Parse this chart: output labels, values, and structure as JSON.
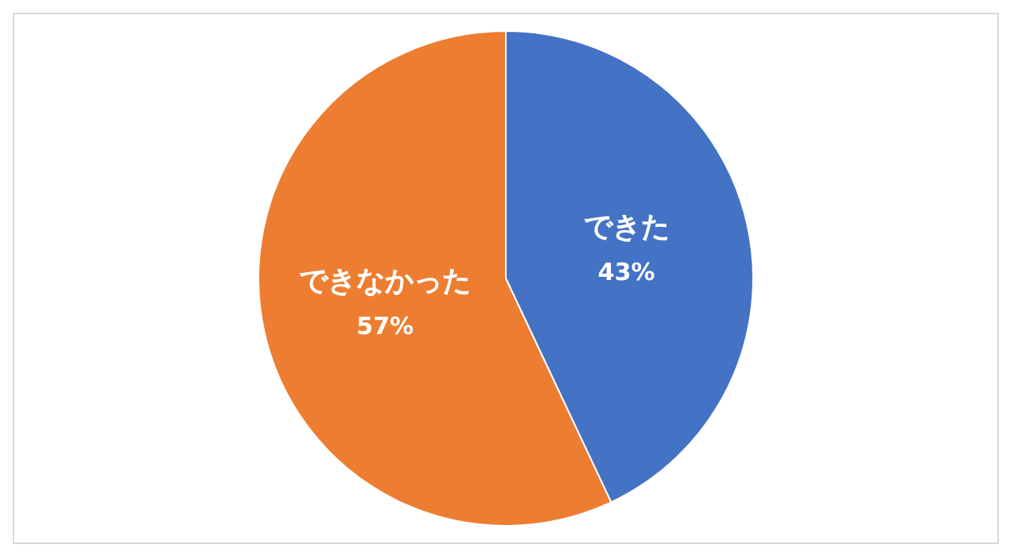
{
  "chart_data": {
    "type": "pie",
    "categories": [
      "できた",
      "できなかった"
    ],
    "values": [
      43,
      57
    ],
    "colors": [
      "#4472c4",
      "#ed7d31"
    ],
    "value_labels": [
      "43%",
      "57%"
    ],
    "legend": false
  }
}
